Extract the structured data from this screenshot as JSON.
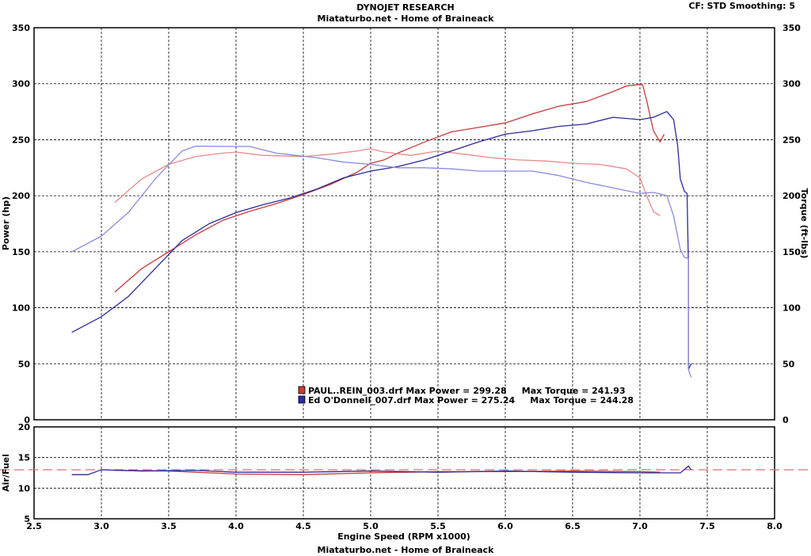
{
  "header": {
    "title": "DYNOJET RESEARCH",
    "subtitle": "Miataturbo.net - Home of Braineack",
    "settings": "CF: STD   Smoothing: 5",
    "footer": "Miataturbo.net - Home of Braineack"
  },
  "chart_data": [
    {
      "type": "line",
      "xlabel": "Engine Speed (RPM x1000)",
      "ylabel": "Power (hp)",
      "y2label": "Torque (ft-lbs)",
      "xlim": [
        2.5,
        8.0
      ],
      "ylim": [
        0,
        350
      ],
      "y2lim": [
        0,
        350
      ],
      "x_ticks": [
        "2.5",
        "3.0",
        "3.5",
        "4.0",
        "4.5",
        "5.0",
        "5.5",
        "6.0",
        "6.5",
        "7.0",
        "7.5",
        "8.0"
      ],
      "y_ticks": [
        "0",
        "50",
        "100",
        "150",
        "200",
        "250",
        "300",
        "350"
      ],
      "grid": true,
      "colors": {
        "run1": "#c83a3a",
        "run2": "#2a2a9a"
      },
      "legend": [
        {
          "label": "PAUL..REIN_003.drf Max Power = 299.28     Max Torque = 241.93",
          "color": "#c83a3a"
        },
        {
          "label": "Ed O'Donnell_007.drf Max Power = 275.24     Max Torque = 244.28",
          "color": "#2a2ab0"
        }
      ],
      "series": [
        {
          "name": "PAUL..REIN_003.drf",
          "measure": "power",
          "color": "#c83a3a",
          "points": [
            [
              3.1,
              114
            ],
            [
              3.3,
              135
            ],
            [
              3.5,
              150
            ],
            [
              3.7,
              165
            ],
            [
              3.9,
              178
            ],
            [
              4.1,
              186
            ],
            [
              4.3,
              193
            ],
            [
              4.5,
              201
            ],
            [
              4.7,
              210
            ],
            [
              4.9,
              221
            ],
            [
              5.0,
              229
            ],
            [
              5.1,
              232
            ],
            [
              5.2,
              238
            ],
            [
              5.4,
              248
            ],
            [
              5.6,
              257
            ],
            [
              5.8,
              261
            ],
            [
              6.0,
              265
            ],
            [
              6.2,
              273
            ],
            [
              6.4,
              280
            ],
            [
              6.6,
              284
            ],
            [
              6.8,
              293
            ],
            [
              6.9,
              298
            ],
            [
              7.0,
              299.3
            ],
            [
              7.02,
              299
            ],
            [
              7.05,
              285
            ],
            [
              7.1,
              258
            ],
            [
              7.15,
              248
            ],
            [
              7.18,
              255
            ]
          ]
        },
        {
          "name": "PAUL..REIN_003.drf",
          "measure": "torque",
          "color": "#e88a8a",
          "points": [
            [
              3.1,
              194
            ],
            [
              3.3,
              215
            ],
            [
              3.5,
              228
            ],
            [
              3.7,
              235
            ],
            [
              3.9,
              238
            ],
            [
              4.0,
              239
            ],
            [
              4.2,
              236
            ],
            [
              4.5,
              235
            ],
            [
              4.7,
              237
            ],
            [
              4.9,
              240
            ],
            [
              5.0,
              241.9
            ],
            [
              5.1,
              239
            ],
            [
              5.3,
              236
            ],
            [
              5.5,
              240
            ],
            [
              5.7,
              237
            ],
            [
              5.9,
              234
            ],
            [
              6.1,
              232
            ],
            [
              6.3,
              231
            ],
            [
              6.5,
              229
            ],
            [
              6.7,
              228
            ],
            [
              6.9,
              224
            ],
            [
              7.0,
              216
            ],
            [
              7.05,
              200
            ],
            [
              7.1,
              186
            ],
            [
              7.15,
              182
            ]
          ]
        },
        {
          "name": "Ed O'Donnell_007.drf",
          "measure": "power",
          "color": "#2a2a9a",
          "points": [
            [
              2.78,
              78
            ],
            [
              3.0,
              92
            ],
            [
              3.2,
              110
            ],
            [
              3.4,
              135
            ],
            [
              3.6,
              160
            ],
            [
              3.8,
              175
            ],
            [
              4.0,
              185
            ],
            [
              4.2,
              192
            ],
            [
              4.4,
              198
            ],
            [
              4.6,
              206
            ],
            [
              4.8,
              216
            ],
            [
              5.0,
              222
            ],
            [
              5.2,
              226
            ],
            [
              5.4,
              232
            ],
            [
              5.6,
              240
            ],
            [
              5.8,
              248
            ],
            [
              6.0,
              255
            ],
            [
              6.2,
              258
            ],
            [
              6.4,
              262
            ],
            [
              6.6,
              264
            ],
            [
              6.8,
              270
            ],
            [
              7.0,
              268
            ],
            [
              7.1,
              270
            ],
            [
              7.2,
              275.2
            ],
            [
              7.25,
              268
            ],
            [
              7.28,
              245
            ],
            [
              7.3,
              215
            ],
            [
              7.33,
              204
            ],
            [
              7.35,
              202
            ],
            [
              7.36,
              140
            ],
            [
              7.36,
              45
            ],
            [
              7.38,
              50
            ]
          ]
        },
        {
          "name": "Ed O'Donnell_007.drf",
          "measure": "torque",
          "color": "#8a8ae0",
          "points": [
            [
              2.78,
              150
            ],
            [
              3.0,
              164
            ],
            [
              3.2,
              185
            ],
            [
              3.4,
              215
            ],
            [
              3.6,
              240
            ],
            [
              3.7,
              244.3
            ],
            [
              3.9,
              244
            ],
            [
              4.1,
              244
            ],
            [
              4.3,
              238
            ],
            [
              4.6,
              234
            ],
            [
              4.8,
              230
            ],
            [
              5.0,
              228
            ],
            [
              5.2,
              225
            ],
            [
              5.4,
              225
            ],
            [
              5.6,
              224
            ],
            [
              5.8,
              222
            ],
            [
              6.0,
              222
            ],
            [
              6.2,
              222
            ],
            [
              6.4,
              218
            ],
            [
              6.6,
              212
            ],
            [
              6.8,
              207
            ],
            [
              7.0,
              202
            ],
            [
              7.1,
              203
            ],
            [
              7.2,
              200
            ],
            [
              7.25,
              182
            ],
            [
              7.3,
              152
            ],
            [
              7.33,
              145
            ],
            [
              7.36,
              144
            ],
            [
              7.36,
              45
            ],
            [
              7.38,
              38
            ]
          ]
        }
      ]
    },
    {
      "type": "line",
      "ylabel": "Air/Fuel",
      "xlim": [
        2.5,
        8.0
      ],
      "ylim": [
        5,
        20
      ],
      "y_ticks": [
        "5",
        "10",
        "15",
        "20"
      ],
      "reference_line": 13.0,
      "series": [
        {
          "name": "PAUL..REIN_003.drf",
          "color": "#c83a3a",
          "points": [
            [
              3.1,
              12.9
            ],
            [
              3.5,
              12.8
            ],
            [
              4.0,
              12.3
            ],
            [
              4.5,
              12.2
            ],
            [
              5.0,
              12.5
            ],
            [
              5.5,
              12.7
            ],
            [
              6.0,
              12.7
            ],
            [
              6.5,
              12.8
            ],
            [
              7.0,
              12.7
            ],
            [
              7.15,
              12.6
            ]
          ]
        },
        {
          "name": "Ed O'Donnell_007.drf",
          "color": "#2a2a9a",
          "points": [
            [
              2.78,
              12.2
            ],
            [
              2.9,
              12.2
            ],
            [
              3.0,
              13.0
            ],
            [
              3.3,
              12.8
            ],
            [
              3.7,
              12.9
            ],
            [
              4.0,
              12.6
            ],
            [
              4.5,
              12.6
            ],
            [
              5.0,
              12.8
            ],
            [
              5.5,
              12.6
            ],
            [
              6.0,
              12.8
            ],
            [
              6.5,
              12.6
            ],
            [
              7.0,
              12.5
            ],
            [
              7.3,
              12.5
            ],
            [
              7.36,
              13.6
            ],
            [
              7.38,
              13.0
            ]
          ]
        }
      ]
    }
  ]
}
